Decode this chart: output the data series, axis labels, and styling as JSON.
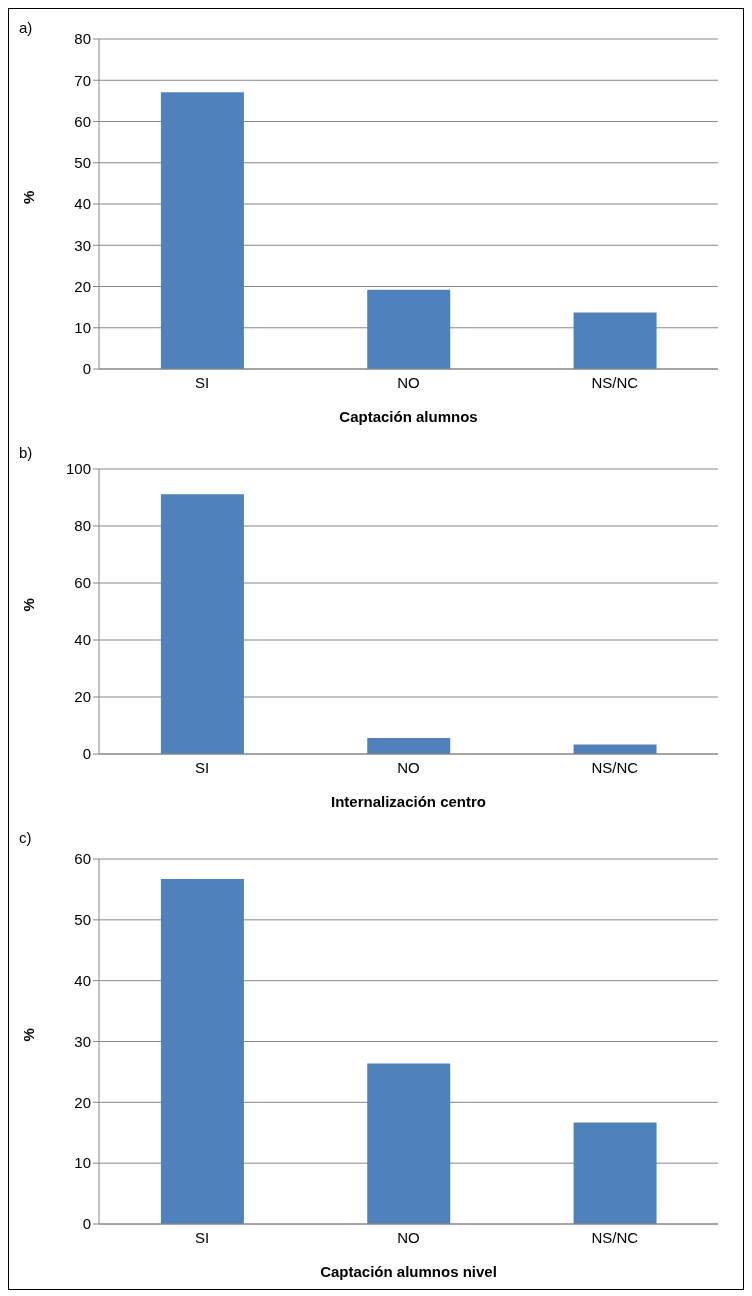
{
  "chart_data": [
    {
      "type": "bar",
      "annotations": [
        "a)"
      ],
      "categories": [
        "SI",
        "NO",
        "NS/NC"
      ],
      "values": [
        67.1,
        19.2,
        13.7
      ],
      "color": "#4f81bd",
      "ylim": [
        0,
        80
      ],
      "yticks": [
        0,
        10,
        20,
        30,
        40,
        50,
        60,
        70,
        80
      ],
      "grid": "y",
      "xlabel": "Captación alumnos",
      "ylabel": "%"
    },
    {
      "type": "bar",
      "annotations": [
        "b)"
      ],
      "categories": [
        "SI",
        "NO",
        "NS/NC"
      ],
      "values": [
        91.1,
        5.6,
        3.3
      ],
      "color": "#4f81bd",
      "ylim": [
        0,
        100
      ],
      "yticks": [
        0,
        20,
        40,
        60,
        80,
        100
      ],
      "grid": "y",
      "xlabel": "Internalización centro",
      "ylabel": "%"
    },
    {
      "type": "bar",
      "annotations": [
        "c)"
      ],
      "categories": [
        "SI",
        "NO",
        "NS/NC"
      ],
      "values": [
        56.7,
        26.4,
        16.7
      ],
      "color": "#4f81bd",
      "ylim": [
        0,
        60
      ],
      "yticks": [
        0,
        10,
        20,
        30,
        40,
        50,
        60
      ],
      "grid": "y",
      "xlabel": "Captación alumnos nivel",
      "ylabel": "%"
    }
  ]
}
